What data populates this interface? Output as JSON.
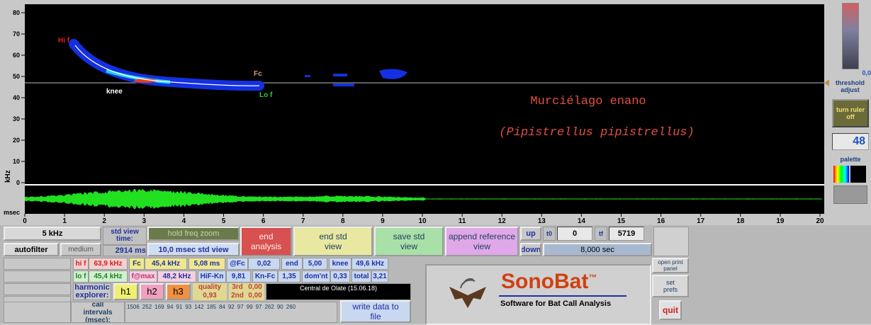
{
  "spectrogram": {
    "y_axis_label": "kHz",
    "x_axis_label": "msec",
    "yticks": [
      80,
      70,
      60,
      50,
      40,
      30,
      20,
      10,
      0
    ],
    "xticks": [
      0,
      1,
      2,
      3,
      4,
      5,
      6,
      7,
      8,
      9,
      10,
      11,
      12,
      13,
      14,
      15,
      16,
      17,
      18,
      19,
      20
    ],
    "markers": {
      "hi_f": "Hi f",
      "knee": "knee",
      "fc": "Fc",
      "lo_f": "Lo f"
    },
    "species_common": "Murciélago enano",
    "species_latin": "(Pipistrellus pipistrellus)"
  },
  "side_panel": {
    "threshold_value": "0,0",
    "threshold_label": "threshold adjust",
    "ruler_button": "turn ruler off",
    "zoom_value": "48",
    "palette_label": "palette"
  },
  "controls": {
    "freq_zoom": "5 kHz",
    "autofilter": "autofilter",
    "filter_level": "medium",
    "std_view_time_label": "std view time:",
    "std_view_time": "2914 ms",
    "hold_freq_zoom": "hold freq zoom",
    "std_view_width": "10,0 msec std view",
    "end_analysis": "end analysis",
    "end_std_view": "end std view",
    "save_std_view": "save std view",
    "append_reference_view": "append reference view",
    "up": "up",
    "down": "down",
    "t0_label": "t0",
    "t0": "0",
    "tf_label": "tf",
    "tf": "5719",
    "duration": "8,000 sec",
    "open_print_panel": "open print panel",
    "set_prefs": "set prefs",
    "quit": "quit",
    "write_data": "write data to file"
  },
  "measurements": [
    {
      "label": "hi f",
      "value": "63,9 kHz"
    },
    {
      "label": "Fc",
      "value": "45,4 kHz"
    },
    {
      "value": "5,08 ms"
    },
    {
      "label": "@Fc",
      "value": "0,02"
    },
    {
      "label": "end",
      "value": "5,00"
    },
    {
      "label": "knee",
      "value": "49,6 kHz"
    },
    {
      "label": "lo f",
      "value": "45,4 kHz"
    },
    {
      "label": "f@max",
      "value": "48,2 kHz"
    },
    {
      "label": "HiF-Kn",
      "value": "9,81"
    },
    {
      "label": "Kn-Fc",
      "value": "1,35"
    },
    {
      "label": "dom'nt",
      "value": "0,33"
    },
    {
      "label": "total",
      "value": "3,21"
    }
  ],
  "harmonics": {
    "label": "harmonic explorer:",
    "buttons": [
      "h1",
      "h2",
      "h3"
    ]
  },
  "quality": {
    "label": "quality",
    "value": "0,93"
  },
  "third": {
    "label": "3rd",
    "value": "0,00"
  },
  "second": {
    "label": "2nd",
    "value": "0,00"
  },
  "site": "Central de Olate (15.06.18)",
  "call_intervals": {
    "label": "call intervals (msec):",
    "values": [
      1506,
      252,
      169,
      94,
      91,
      93,
      142,
      185,
      84,
      92,
      97,
      99,
      97,
      262,
      90,
      260
    ]
  },
  "logo": {
    "name": "SonoBat",
    "tm": "™",
    "tagline": "Software for Bat Call Analysis"
  }
}
